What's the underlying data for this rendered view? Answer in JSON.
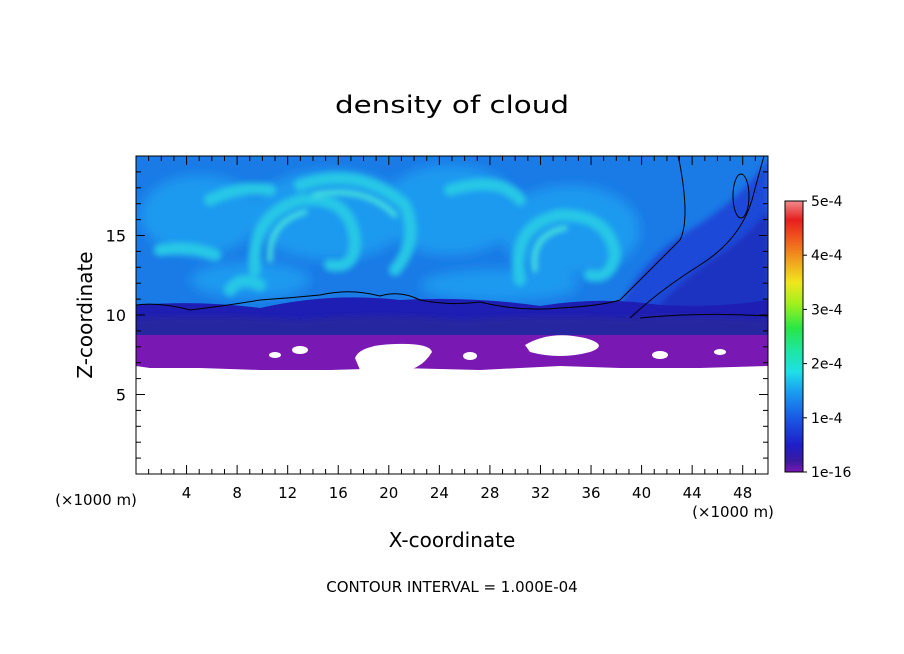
{
  "chart_data": {
    "type": "heatmap",
    "title": "density of cloud",
    "xlabel": "X-coordinate",
    "ylabel": "Z-coordinate",
    "x_unit": "(×1000 m)",
    "y_unit": "(×1000 m)",
    "xlim": [
      0,
      50
    ],
    "ylim": [
      0,
      20
    ],
    "x_ticks": [
      "4",
      "8",
      "12",
      "16",
      "20",
      "24",
      "28",
      "32",
      "36",
      "40",
      "44",
      "48"
    ],
    "y_ticks": [
      "5",
      "10",
      "15"
    ],
    "colorbar": {
      "min_label": "1e-16",
      "labels": [
        "1e-16",
        "1e-4",
        "2e-4",
        "3e-4",
        "4e-4",
        "5e-4"
      ],
      "values": [
        0,
        0.0001,
        0.0002,
        0.0003,
        0.0004,
        0.0005
      ],
      "colors": [
        "#7a18b4",
        "#1e1ea8",
        "#1a4be6",
        "#1a8ff0",
        "#1ec8e6",
        "#1ee6a0",
        "#3ce632",
        "#b4f01e",
        "#f0e61e",
        "#f0a01e",
        "#f0501e",
        "#e61e1e",
        "#f08080"
      ]
    },
    "cloud_base_km": 6.5,
    "cloud_layer_top_km": 10.5,
    "domain_top_km": 20,
    "contour_interval": "CONTOUR INTERVAL = 1.000E-04",
    "grid": false
  }
}
